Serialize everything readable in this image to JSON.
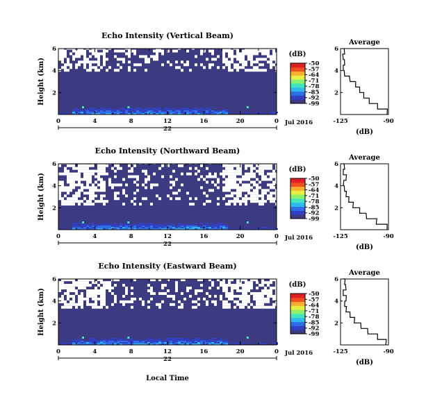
{
  "xaxis": {
    "xlabel": "Local Time",
    "ticks": [
      "0",
      "4",
      "8",
      "12",
      "16",
      "20",
      "0"
    ],
    "day": "22",
    "month_year": "Jul 2016",
    "range_hours": [
      0,
      24
    ]
  },
  "colorbar": {
    "unit": "(dB)",
    "ticks": [
      "-50",
      "-57",
      "-64",
      "-71",
      "-78",
      "-85",
      "-92",
      "-99"
    ],
    "range": [
      -99,
      -50
    ],
    "colors": [
      "#3c3a80",
      "#3140c0",
      "#2e6ee8",
      "#2fb8ee",
      "#3fe6c0",
      "#8cf070",
      "#e6f040",
      "#f8b030",
      "#f05020",
      "#e02020"
    ]
  },
  "colors": {
    "background_fill": "#3c3a80",
    "missing": "#ffffff"
  },
  "average_panel": {
    "title": "Average",
    "xlabel": "(dB)",
    "xticks": [
      "-125",
      "-90"
    ],
    "yticks": [
      "2",
      "4",
      "6"
    ],
    "xrange": [
      -125,
      -90
    ]
  },
  "chart_data": [
    {
      "type": "heatmap",
      "title": "Echo Intensity (Vertical Beam)",
      "ylabel": "Height (km)",
      "yticks": [
        "2",
        "4",
        "6"
      ],
      "ylim": [
        0,
        6
      ],
      "xlim": [
        0,
        24
      ],
      "missing_boundary_km": 3.9,
      "average_profile": {
        "height_km": [
          0,
          0.5,
          1,
          1.5,
          2,
          2.5,
          3,
          3.5,
          4,
          4.5,
          5,
          5.5,
          6
        ],
        "value_db": [
          -91,
          -98,
          -104,
          -108,
          -111,
          -114,
          -118,
          -122,
          -123,
          -122,
          -123,
          -122,
          -123
        ]
      }
    },
    {
      "type": "heatmap",
      "title": "Echo Intensity (Northward Beam)",
      "ylabel": "Height (km)",
      "yticks": [
        "2",
        "4",
        "6"
      ],
      "ylim": [
        0,
        6
      ],
      "xlim": [
        0,
        24
      ],
      "missing_boundary_km": 2.2,
      "average_profile": {
        "height_km": [
          0,
          0.5,
          1,
          1.5,
          2,
          2.5,
          3,
          3.5,
          4,
          4.5,
          5,
          5.5,
          6
        ],
        "value_db": [
          -91,
          -99,
          -106,
          -111,
          -116,
          -119,
          -121,
          -122,
          -123,
          -121,
          -123,
          -122,
          -123
        ]
      }
    },
    {
      "type": "heatmap",
      "title": "Echo Intensity (Eastward Beam)",
      "ylabel": "Height (km)",
      "yticks": [
        "2",
        "4",
        "6"
      ],
      "ylim": [
        0,
        6
      ],
      "xlim": [
        0,
        24
      ],
      "missing_boundary_km": 3.3,
      "average_profile": {
        "height_km": [
          0,
          0.5,
          1,
          1.5,
          2,
          2.5,
          3,
          3.5,
          4,
          4.5,
          5,
          5.5,
          6
        ],
        "value_db": [
          -92,
          -98,
          -105,
          -110,
          -115,
          -118,
          -121,
          -122,
          -121,
          -123,
          -121,
          -122,
          -123
        ]
      }
    }
  ]
}
